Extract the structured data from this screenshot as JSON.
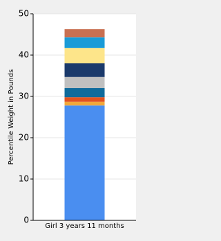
{
  "chart_data": {
    "type": "stacked_bar",
    "ylabel": "Percentile Weight in Pounds",
    "categories": [
      "Girl 3 years 11 months"
    ],
    "series": [
      {
        "color": "#4a8ef0",
        "values": [
          27.8
        ]
      },
      {
        "color": "#f2a83a",
        "values": [
          0.9
        ]
      },
      {
        "color": "#e2531f",
        "values": [
          1.1
        ]
      },
      {
        "color": "#0f6b9c",
        "values": [
          2.2
        ]
      },
      {
        "color": "#c0c0c0",
        "values": [
          2.7
        ]
      },
      {
        "color": "#1b3a6b",
        "values": [
          3.3
        ]
      },
      {
        "color": "#fde58a",
        "values": [
          3.7
        ]
      },
      {
        "color": "#1a9bd7",
        "values": [
          2.6
        ]
      },
      {
        "color": "#c97052",
        "values": [
          2.0
        ]
      }
    ],
    "ylim": [
      0,
      50
    ],
    "yticks": [
      0,
      10,
      20,
      30,
      40,
      50
    ],
    "grid": true
  }
}
